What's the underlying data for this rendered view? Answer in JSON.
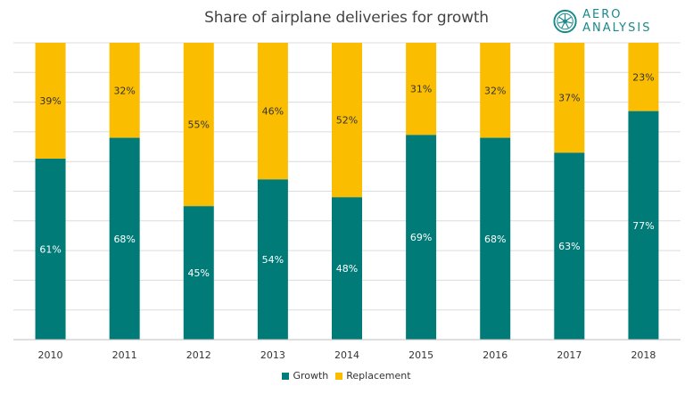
{
  "logo": {
    "text": "AERO ANALYSIS"
  },
  "colors": {
    "growth": "#007b78",
    "replacement": "#fbbd00",
    "grid": "#dcdcdc",
    "logo": "#1a8a8a"
  },
  "chart_data": {
    "type": "bar",
    "stacked": true,
    "title": "Share of airplane deliveries for growth",
    "xlabel": "",
    "ylabel": "",
    "ylim": [
      0,
      100
    ],
    "grid": true,
    "legend_position": "bottom",
    "categories": [
      "2010",
      "2011",
      "2012",
      "2013",
      "2014",
      "2015",
      "2016",
      "2017",
      "2018"
    ],
    "series": [
      {
        "name": "Growth",
        "values": [
          61,
          68,
          45,
          54,
          48,
          69,
          68,
          63,
          77
        ],
        "labels": [
          "61%",
          "68%",
          "45%",
          "54%",
          "48%",
          "69%",
          "68%",
          "63%",
          "77%"
        ]
      },
      {
        "name": "Replacement",
        "values": [
          39,
          32,
          55,
          46,
          52,
          31,
          32,
          37,
          23
        ],
        "labels": [
          "39%",
          "32%",
          "55%",
          "46%",
          "52%",
          "31%",
          "32%",
          "37%",
          "23%"
        ]
      }
    ]
  }
}
